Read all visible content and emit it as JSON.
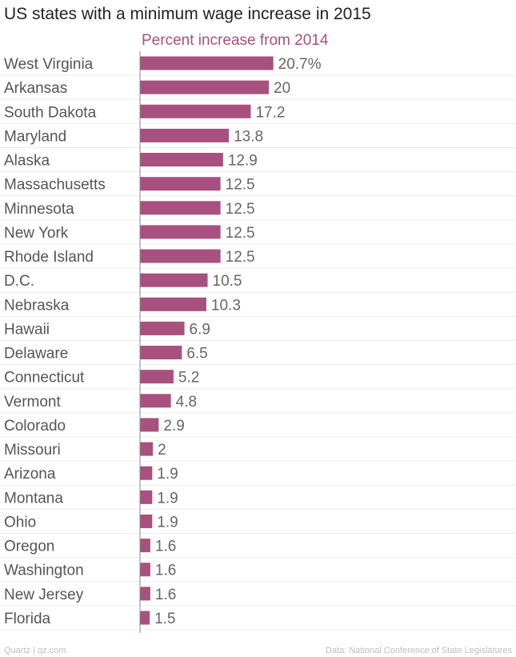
{
  "chart_data": {
    "type": "bar",
    "orientation": "horizontal",
    "title": "US states with a minimum wage increase in 2015",
    "series": [
      {
        "name": "Percent increase from 2014",
        "values": [
          20.7,
          20,
          17.2,
          13.8,
          12.9,
          12.5,
          12.5,
          12.5,
          12.5,
          10.5,
          10.3,
          6.9,
          6.5,
          5.2,
          4.8,
          2.9,
          2,
          1.9,
          1.9,
          1.9,
          1.6,
          1.6,
          1.6,
          1.5
        ]
      }
    ],
    "categories": [
      "West Virginia",
      "Arkansas",
      "South Dakota",
      "Maryland",
      "Alaska",
      "Massachusetts",
      "Minnesota",
      "New York",
      "Rhode Island",
      "D.C.",
      "Nebraska",
      "Hawaii",
      "Delaware",
      "Connecticut",
      "Vermont",
      "Colorado",
      "Missouri",
      "Arizona",
      "Montana",
      "Ohio",
      "Oregon",
      "Washington",
      "New Jersey",
      "Florida"
    ],
    "value_labels": [
      "20.7%",
      "20",
      "17.2",
      "13.8",
      "12.9",
      "12.5",
      "12.5",
      "12.5",
      "12.5",
      "10.5",
      "10.3",
      "6.9",
      "6.5",
      "5.2",
      "4.8",
      "2.9",
      "2",
      "1.9",
      "1.9",
      "1.9",
      "1.6",
      "1.6",
      "1.6",
      "1.5"
    ],
    "xlim": [
      0,
      30
    ],
    "grid": true,
    "colors": {
      "bar": "#a8507e",
      "series_title": "#a8507e"
    }
  },
  "footer": {
    "source": "Quartz | qz.com",
    "credit": "Data: National Conference of State Legislatures"
  }
}
